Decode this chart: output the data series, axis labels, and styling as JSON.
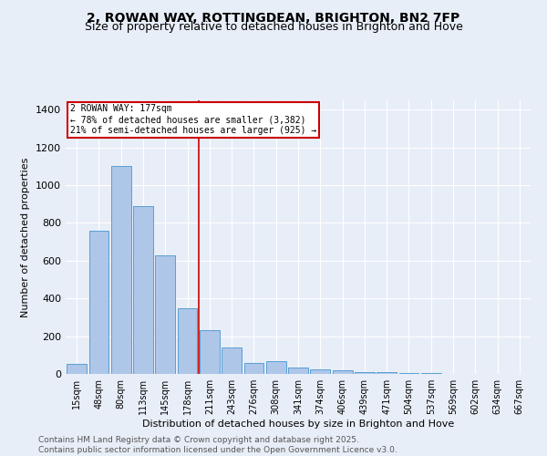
{
  "title": "2, ROWAN WAY, ROTTINGDEAN, BRIGHTON, BN2 7FP",
  "subtitle": "Size of property relative to detached houses in Brighton and Hove",
  "xlabel": "Distribution of detached houses by size in Brighton and Hove",
  "ylabel": "Number of detached properties",
  "footer": "Contains HM Land Registry data © Crown copyright and database right 2025.\nContains public sector information licensed under the Open Government Licence v3.0.",
  "categories": [
    "15sqm",
    "48sqm",
    "80sqm",
    "113sqm",
    "145sqm",
    "178sqm",
    "211sqm",
    "243sqm",
    "276sqm",
    "308sqm",
    "341sqm",
    "374sqm",
    "406sqm",
    "439sqm",
    "471sqm",
    "504sqm",
    "537sqm",
    "569sqm",
    "602sqm",
    "634sqm",
    "667sqm"
  ],
  "values": [
    55,
    760,
    1100,
    890,
    630,
    350,
    230,
    140,
    60,
    70,
    35,
    25,
    18,
    10,
    8,
    5,
    3,
    2,
    1,
    1,
    0
  ],
  "bar_color": "#aec6e8",
  "bar_edge_color": "#5a9fd4",
  "vline_x": 5.5,
  "vline_color": "#cc0000",
  "annotation_text": "2 ROWAN WAY: 177sqm\n← 78% of detached houses are smaller (3,382)\n21% of semi-detached houses are larger (925) →",
  "annotation_box_color": "#cc0000",
  "ylim": [
    0,
    1450
  ],
  "yticks": [
    0,
    200,
    400,
    600,
    800,
    1000,
    1200,
    1400
  ],
  "background_color": "#e8eef8",
  "grid_color": "#ffffff",
  "title_fontsize": 10,
  "subtitle_fontsize": 9,
  "axis_label_fontsize": 8,
  "tick_fontsize": 7,
  "footer_fontsize": 6.5
}
